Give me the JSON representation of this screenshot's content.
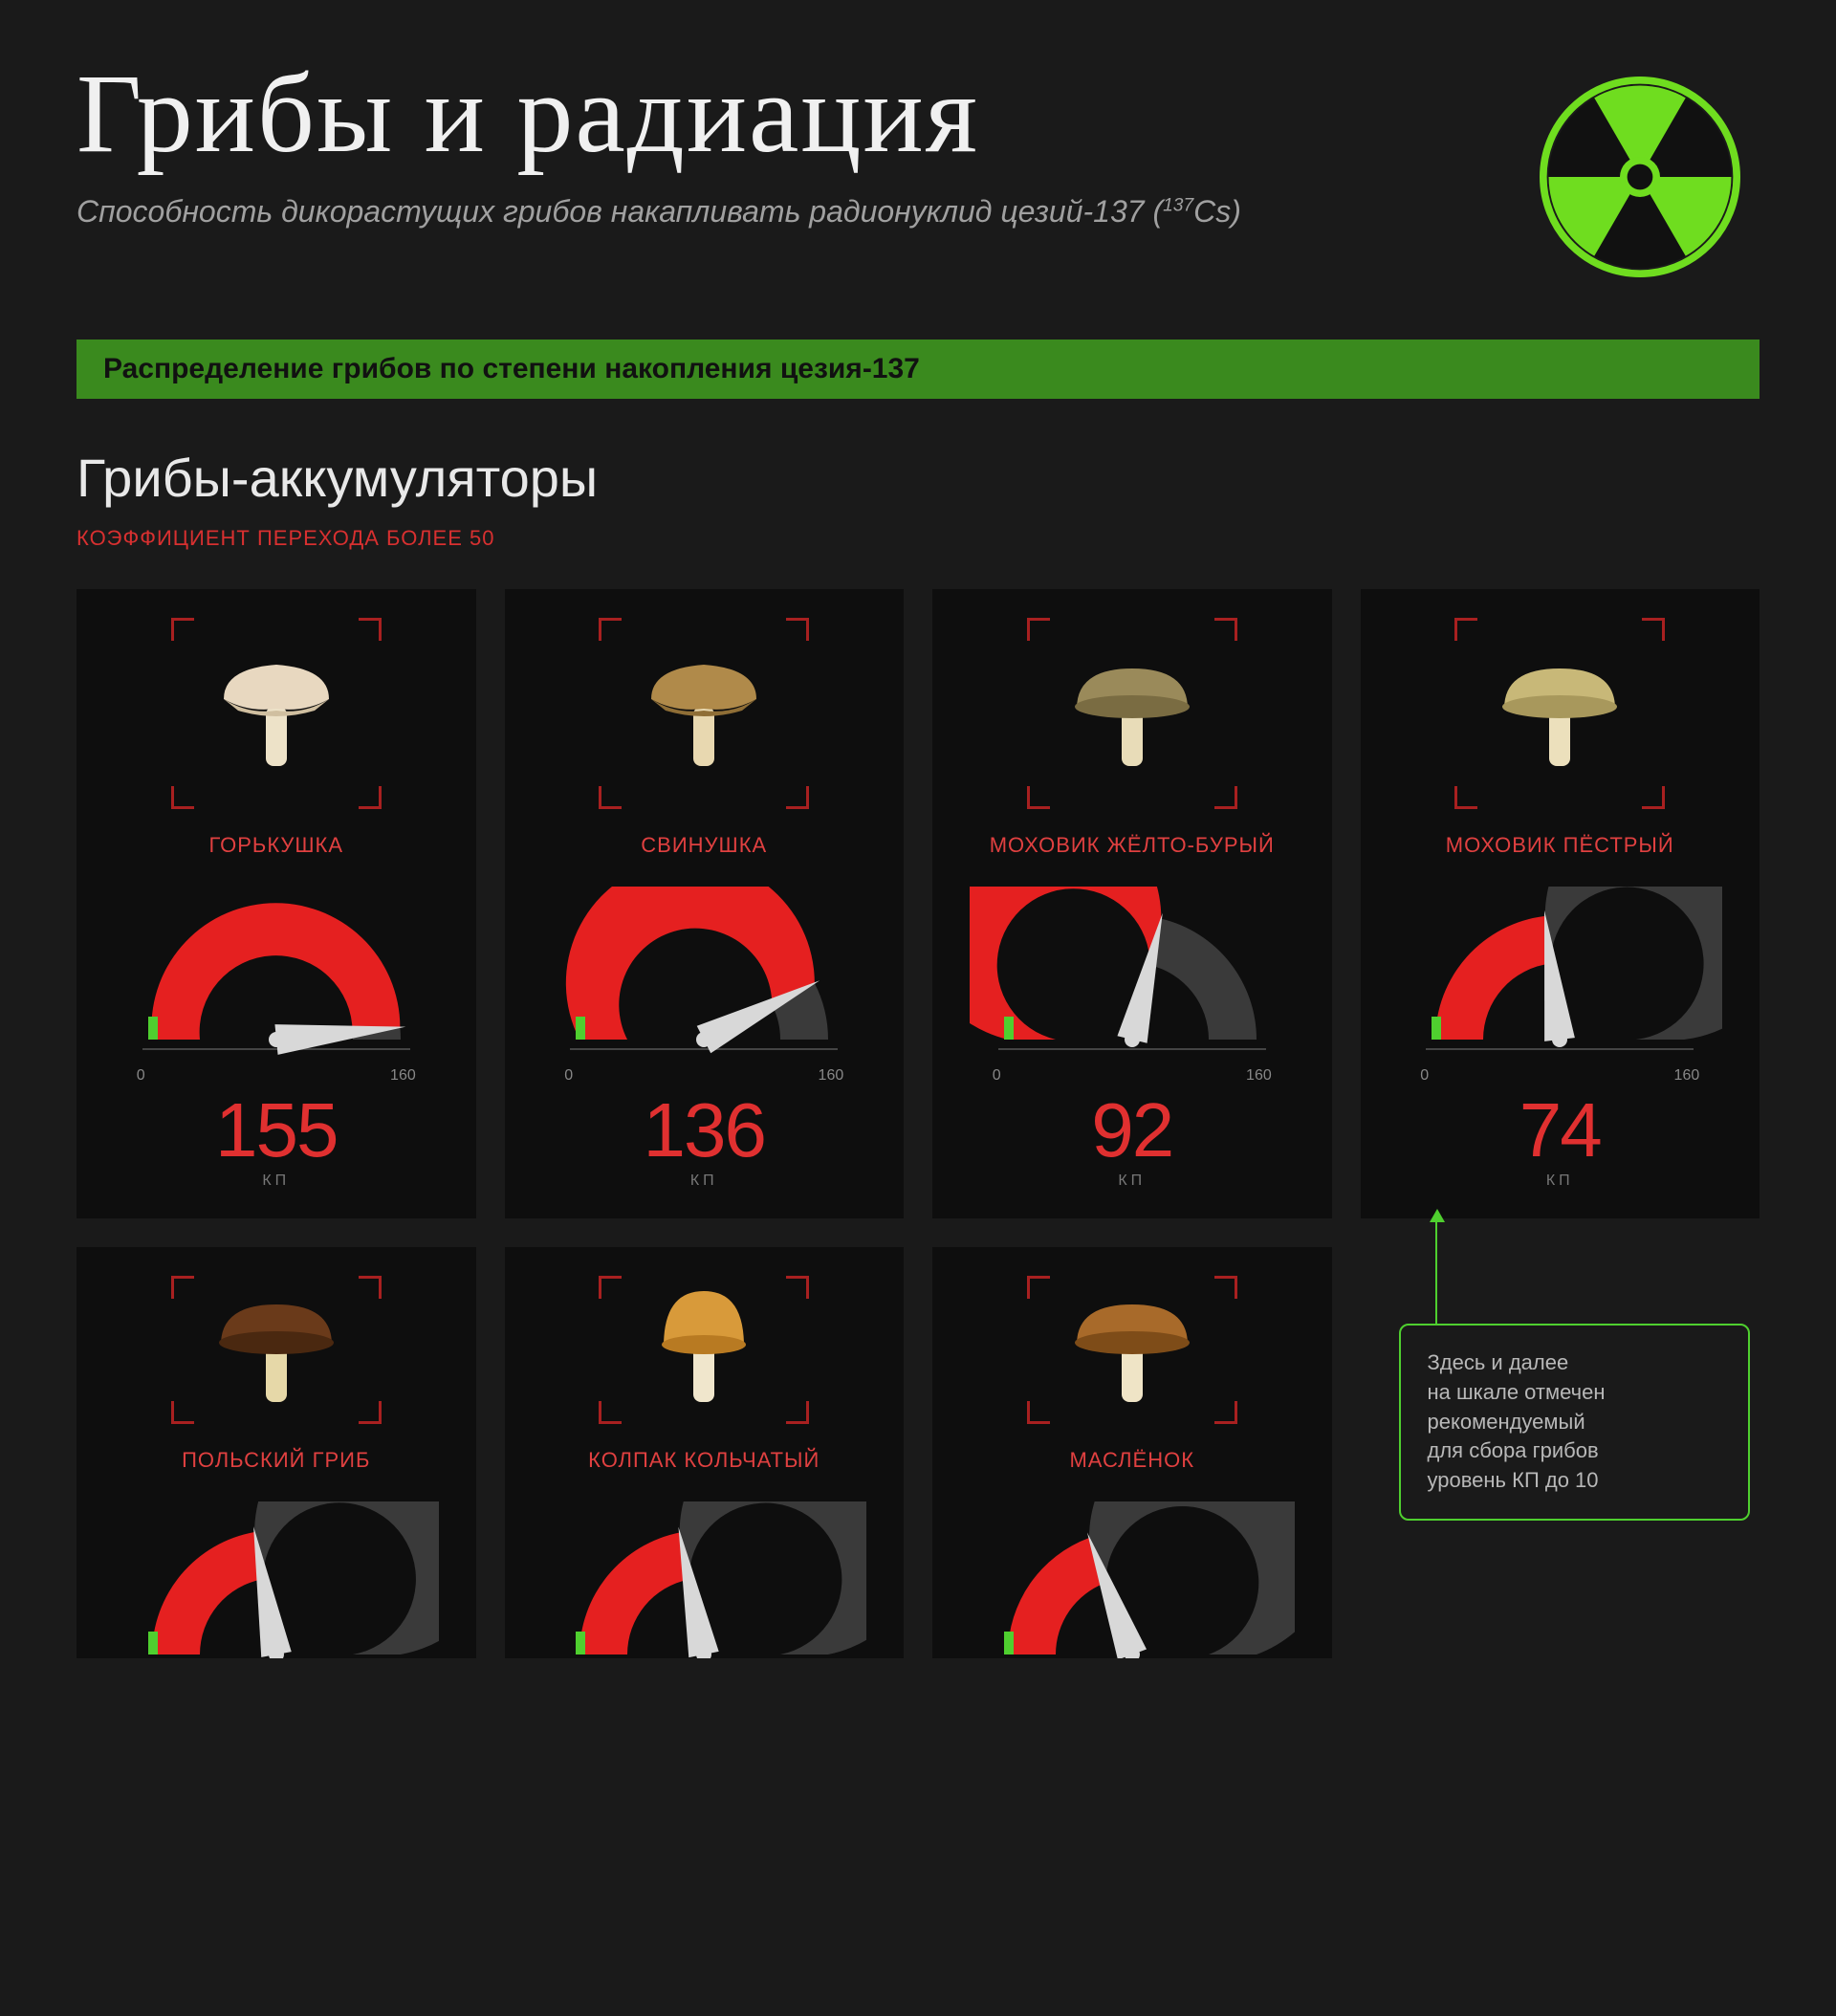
{
  "colors": {
    "page_bg": "#1a1a1a",
    "card_bg": "#0e0e0e",
    "title": "#f0f0f0",
    "subtitle": "#a0a0a0",
    "band_bg": "#3a8a1e",
    "band_text": "#111111",
    "accent_red": "#e03030",
    "frame_red": "#a82020",
    "gauge_fill": "#e52020",
    "gauge_track": "#3a3a3a",
    "green_tick": "#4fcf2f",
    "needle": "#d8d8d8",
    "scale_text": "#888888",
    "kp_text": "#777777",
    "note_border": "#4fcf2f",
    "note_text": "#b8b8b8"
  },
  "header": {
    "title": "Грибы и радиация",
    "subtitle_prefix": "Способность дикорастущих грибов накапливать радионуклид цезий-137 (",
    "subtitle_iso_sup": "137",
    "subtitle_iso": "Cs)",
    "rad_icon_color": "#6fdd1f",
    "rad_icon_bg": "#111111"
  },
  "band": {
    "text": "Распределение грибов по степени накопления цезия-137"
  },
  "section": {
    "title": "Грибы-аккумуляторы",
    "sub": "КОЭФФИЦИЕНТ ПЕРЕХОДА БОЛЕЕ 50"
  },
  "gauge": {
    "min": 0,
    "max": 160,
    "min_label": "0",
    "max_label": "160",
    "safe_max": 10,
    "arc_outer_r": 130,
    "arc_thickness": 50,
    "kp_label": "КП"
  },
  "mushrooms": [
    {
      "name": "ГОРЬКУШКА",
      "value": 155,
      "cap": "#e8d8c0",
      "cap2": "#d0bfa0",
      "stem": "#ede2c8",
      "shape": "funnel"
    },
    {
      "name": "СВИНУШКА",
      "value": 136,
      "cap": "#b08a4a",
      "cap2": "#8f6e36",
      "stem": "#e8d8b0",
      "shape": "funnel"
    },
    {
      "name": "МОХОВИК ЖЁЛТО-БУРЫЙ",
      "value": 92,
      "cap": "#9a8a5a",
      "cap2": "#7a6c42",
      "stem": "#e8dcb8",
      "shape": "bolete"
    },
    {
      "name": "МОХОВИК ПЁСТРЫЙ",
      "value": 74,
      "cap": "#c8b878",
      "cap2": "#a8985c",
      "stem": "#ece0bc",
      "shape": "bolete"
    },
    {
      "name": "ПОЛЬСКИЙ ГРИБ",
      "value": 71,
      "cap": "#6a3a1a",
      "cap2": "#4a2810",
      "stem": "#e6d8a8",
      "shape": "bolete"
    },
    {
      "name": "КОЛПАК КОЛЬЧАТЫЙ",
      "value": 70,
      "cap": "#d89a3a",
      "cap2": "#b87a22",
      "stem": "#f0e6cc",
      "shape": "dome"
    },
    {
      "name": "МАСЛЁНОК",
      "value": 62,
      "cap": "#a86a2a",
      "cap2": "#7e4c18",
      "stem": "#efe4c6",
      "shape": "bolete"
    }
  ],
  "note": {
    "text": "Здесь и далее\nна шкале отмечен\nрекомендуемый\nдля сбора грибов\nуровень КП до 10"
  }
}
